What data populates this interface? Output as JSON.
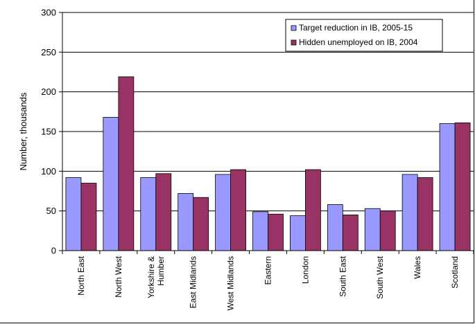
{
  "chart_data": {
    "type": "bar",
    "title": "",
    "xlabel": "",
    "ylabel": "Number, thousands",
    "ylim": [
      0,
      300
    ],
    "yticks": [
      0,
      50,
      100,
      150,
      200,
      250,
      300
    ],
    "grid": true,
    "legend_position": "top-right",
    "categories": [
      "North East",
      "North West",
      "Yorkshire & Humber",
      "East Midlands",
      "West Midlands",
      "Eastern",
      "London",
      "South East",
      "South West",
      "Wales",
      "Scotland"
    ],
    "series": [
      {
        "name": "Target reduction in IB, 2005-15",
        "color": "#9999ff",
        "values": [
          92,
          168,
          92,
          72,
          96,
          49,
          44,
          58,
          53,
          96,
          160
        ]
      },
      {
        "name": "Hidden unemployed on IB, 2004",
        "color": "#993366",
        "values": [
          85,
          219,
          97,
          67,
          102,
          46,
          102,
          45,
          50,
          92,
          161
        ]
      }
    ]
  }
}
